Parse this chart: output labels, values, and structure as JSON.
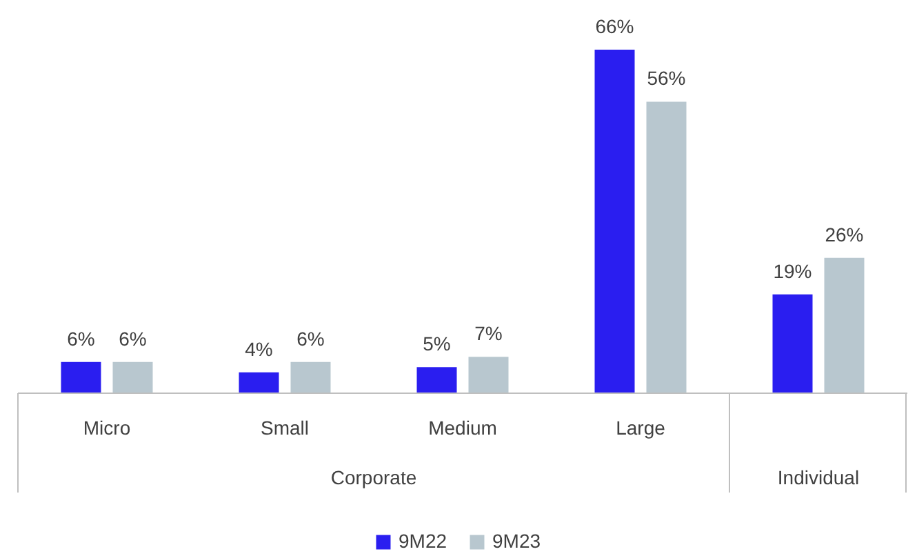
{
  "chart_data": {
    "type": "bar",
    "categories": [
      "Micro",
      "Small",
      "Medium",
      "Large",
      null
    ],
    "series": [
      {
        "name": "9M22",
        "color": "#2a1ef0",
        "values": [
          6,
          4,
          5,
          66,
          19
        ],
        "value_labels": [
          "6%",
          "4%",
          "5%",
          "66%",
          "19%"
        ]
      },
      {
        "name": "9M23",
        "color": "#b8c7cf",
        "values": [
          6,
          6,
          7,
          56,
          26
        ],
        "value_labels": [
          "6%",
          "6%",
          "7%",
          "56%",
          "26%"
        ]
      }
    ],
    "legend": "bottom",
    "annotations": [
      "Corporate",
      "Individual"
    ]
  }
}
